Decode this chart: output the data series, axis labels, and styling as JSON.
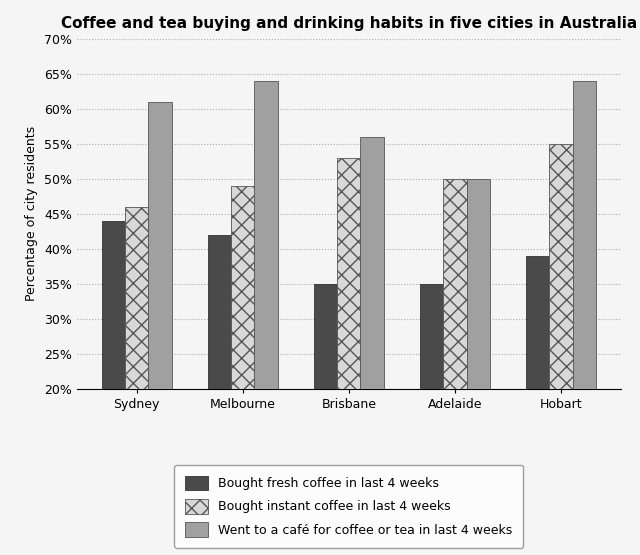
{
  "title": "Coffee and tea buying and drinking habits in five cities in Australia",
  "cities": [
    "Sydney",
    "Melbourne",
    "Brisbane",
    "Adelaide",
    "Hobart"
  ],
  "series": [
    {
      "label": "Bought fresh coffee in last 4 weeks",
      "values": [
        44,
        42,
        35,
        35,
        39
      ],
      "color": "#4a4a4a",
      "hatch": null,
      "edgecolor": "#333333"
    },
    {
      "label": "Bought instant coffee in last 4 weeks",
      "values": [
        46,
        49,
        53,
        50,
        55
      ],
      "color": "#d8d8d8",
      "hatch": "xx",
      "edgecolor": "#555555"
    },
    {
      "label": "Went to a café for coffee or tea in last 4 weeks",
      "values": [
        61,
        64,
        56,
        50,
        64
      ],
      "color": "#a0a0a0",
      "hatch": null,
      "edgecolor": "#555555"
    }
  ],
  "ylabel": "Percentage of city residents",
  "ylim": [
    20,
    70
  ],
  "yticks": [
    20,
    25,
    30,
    35,
    40,
    45,
    50,
    55,
    60,
    65,
    70
  ],
  "ytick_labels": [
    "20%",
    "25%",
    "30%",
    "35%",
    "40%",
    "45%",
    "50%",
    "55%",
    "60%",
    "65%",
    "70%"
  ],
  "background_color": "#f5f5f5",
  "grid_color": "#aaaaaa",
  "title_fontsize": 11,
  "axis_label_fontsize": 9,
  "tick_fontsize": 9,
  "legend_fontsize": 9,
  "bar_width": 0.22
}
